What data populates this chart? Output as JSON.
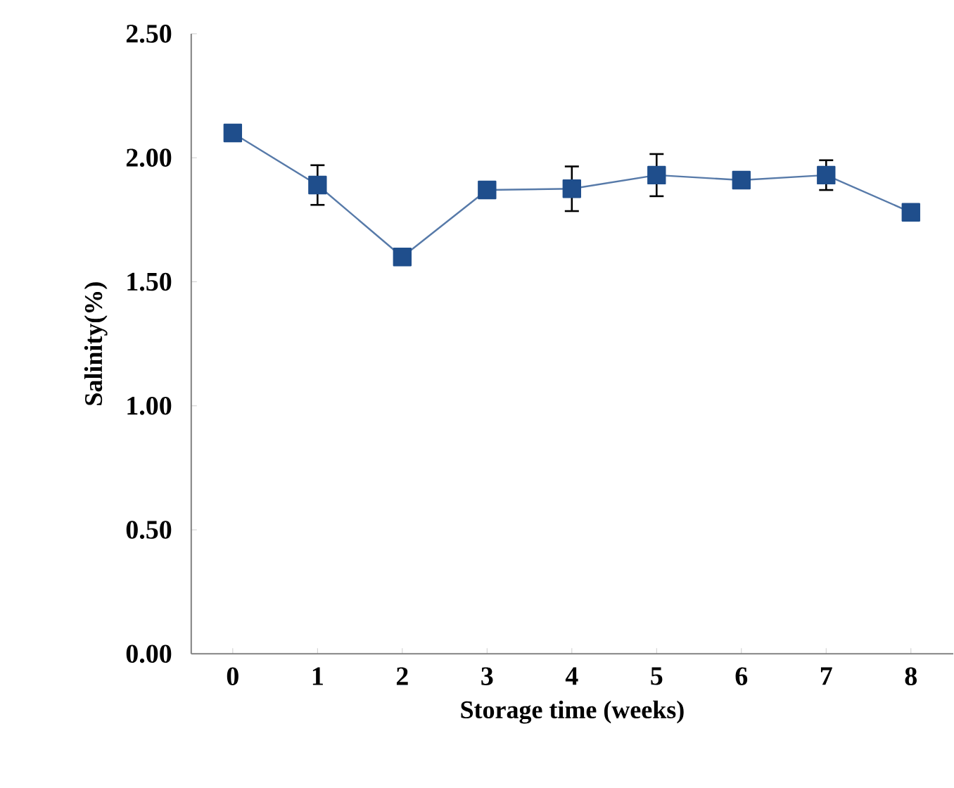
{
  "chart_data": {
    "type": "line",
    "xlabel": "Storage time (weeks)",
    "ylabel": "Salinity(%)",
    "categories": [
      "0",
      "1",
      "2",
      "3",
      "4",
      "5",
      "6",
      "7",
      "8"
    ],
    "series": [
      {
        "color": "#1f4e8c",
        "values": [
          2.1,
          1.89,
          1.6,
          1.87,
          1.875,
          1.93,
          1.91,
          1.93,
          1.78
        ],
        "errors": [
          null,
          0.08,
          null,
          null,
          0.09,
          0.085,
          null,
          0.06,
          null
        ]
      }
    ],
    "ylim": [
      0,
      2.5
    ],
    "yticks": [
      {
        "value": 0,
        "label": "0.00"
      },
      {
        "value": 0.5,
        "label": "0.50"
      },
      {
        "value": 1,
        "label": "1.00"
      },
      {
        "value": 1.5,
        "label": "1.50"
      },
      {
        "value": 2,
        "label": "2.00"
      },
      {
        "value": 2.5,
        "label": "2.50"
      }
    ],
    "grid": false,
    "marker": "square",
    "line_style": "solid"
  }
}
